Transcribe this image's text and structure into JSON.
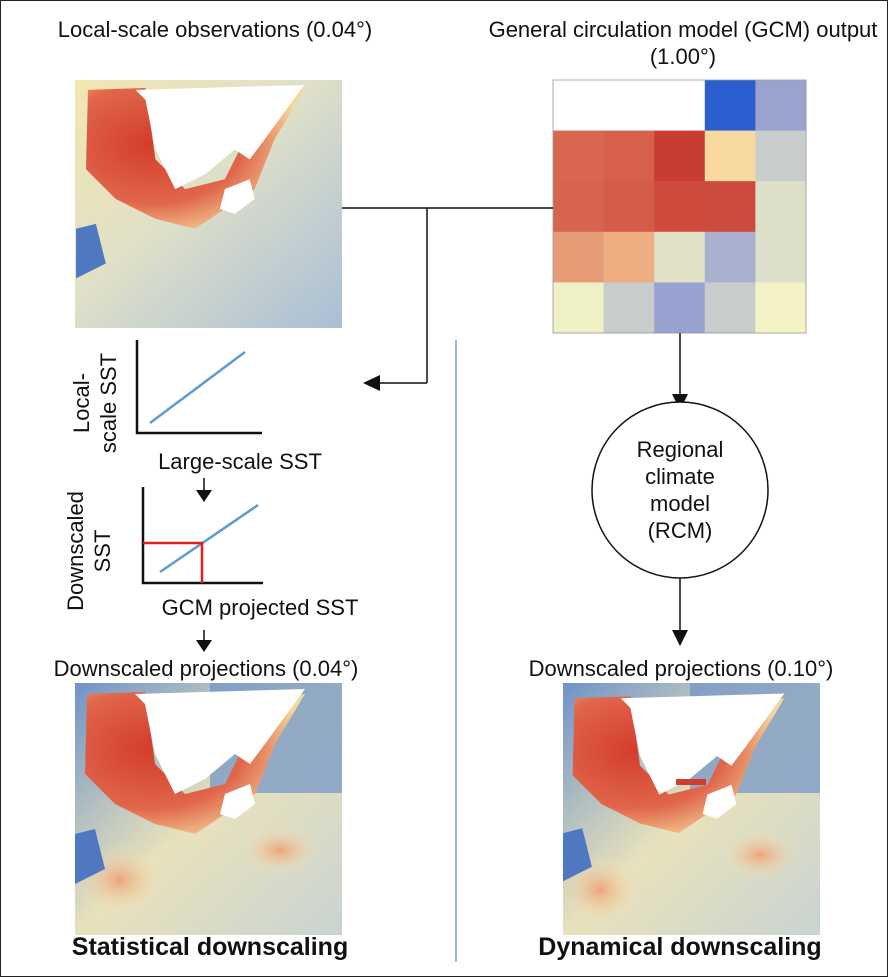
{
  "panels": {
    "observations": {
      "title": "Local-scale observations (0.04°)"
    },
    "gcm": {
      "title": "General circulation model (GCM) output (1.00°)"
    }
  },
  "statistical": {
    "plot1": {
      "y_label": "Local-scale SST",
      "x_label": "Large-scale SST"
    },
    "plot2": {
      "y_label": "Downscaled SST",
      "x_label": "GCM projected SST"
    },
    "output_title": "Downscaled projections (0.04°)",
    "method": "Statistical downscaling"
  },
  "dynamical": {
    "rcm": "Regional climate model (RCM)",
    "output_title": "Downscaled projections (0.10°)",
    "method": "Dynamical downscaling"
  }
}
